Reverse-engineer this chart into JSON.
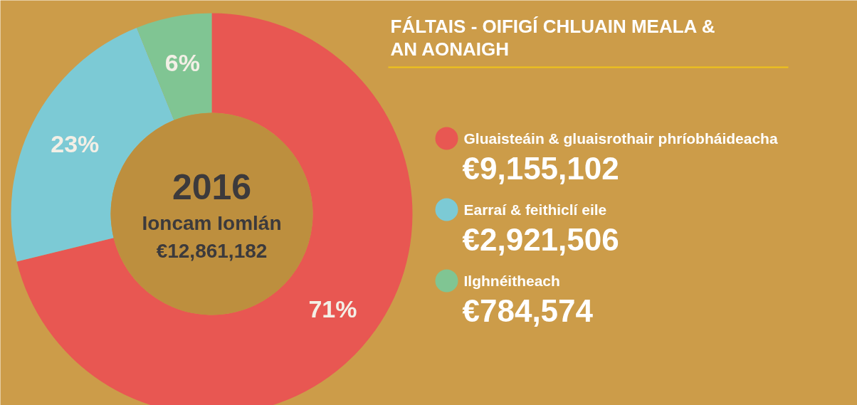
{
  "chart_data": {
    "type": "donut",
    "title": "FÁLTAIS - OIFIGÍ CHLUAIN MEALA & AN AONAIGH",
    "categories": [
      "Gluaisteáin & gluaisrothair phríobháideacha",
      "Earraí & feithiclí eile",
      "Ilghnéitheach"
    ],
    "values": [
      9155102,
      2921506,
      784574
    ],
    "value_labels": [
      "€9,155,102",
      "€2,921,506",
      "€784,574"
    ],
    "colors": [
      "#e85752",
      "#7ccad5",
      "#80c593"
    ],
    "legend": "right",
    "annotations": [
      "71%",
      "23%",
      "6%",
      "2016",
      "Ioncam Iomlán",
      "€12,861,182"
    ]
  }
}
